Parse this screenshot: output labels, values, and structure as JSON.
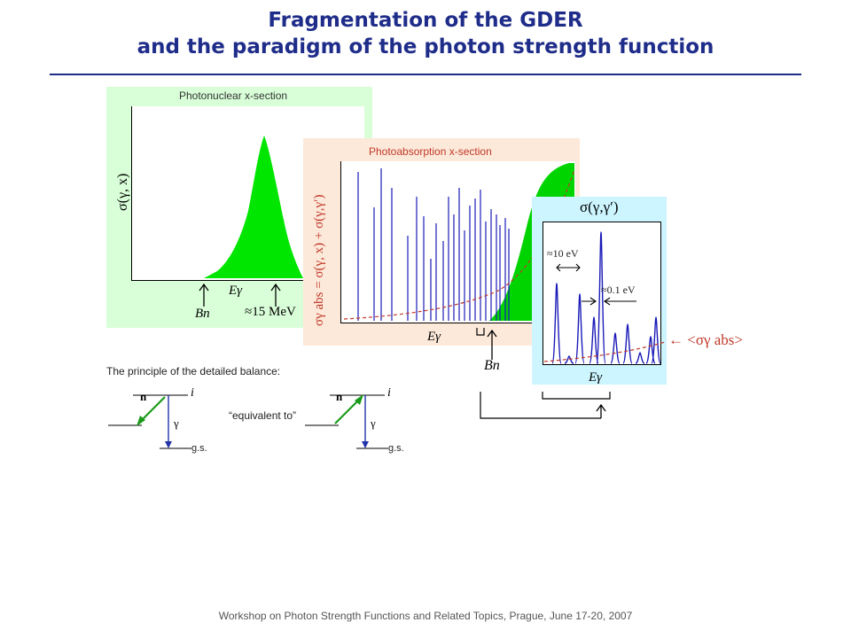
{
  "header": {
    "title_line1": "Fragmentation of the GDER",
    "title_line2": "and the paradigm of the photon strength function"
  },
  "panel1": {
    "title": "Photonuclear x-section",
    "ylabel": "σ(γ, x)",
    "bn_label": "Bn",
    "egamma_label": "Eγ",
    "energy_label": "≈15 MeV",
    "fill_color": "#00e600",
    "bg_color": "#d9ffd9"
  },
  "panel2": {
    "title": "Photoabsorption x-section",
    "ylabel": "σγ abs = σ(γ, x) + σ(γ,γ′)",
    "egamma_label": "Eγ",
    "bn_label": "Bn",
    "bg_color": "#fde9d9",
    "line_color": "#1a1ab8"
  },
  "panel3": {
    "title": "σ(γ,γ′)",
    "spacing_label": "≈10 eV",
    "width_label": "≈0.1 eV",
    "egamma_label": "Eγ",
    "avg_label": "← <σγ abs>",
    "bg_color": "#ccf5ff"
  },
  "balance": {
    "caption": "The principle of the detailed balance:",
    "equivalent": "“equivalent to”",
    "left": {
      "n": "n",
      "i": "i",
      "gamma": "γ",
      "gs": "g.s."
    },
    "right": {
      "n": "n",
      "i": "i",
      "gamma": "γ",
      "gs": "g.s."
    }
  },
  "footer": "Workshop on Photon Strength Functions and Related Topics, Prague, June 17-20, 2007"
}
